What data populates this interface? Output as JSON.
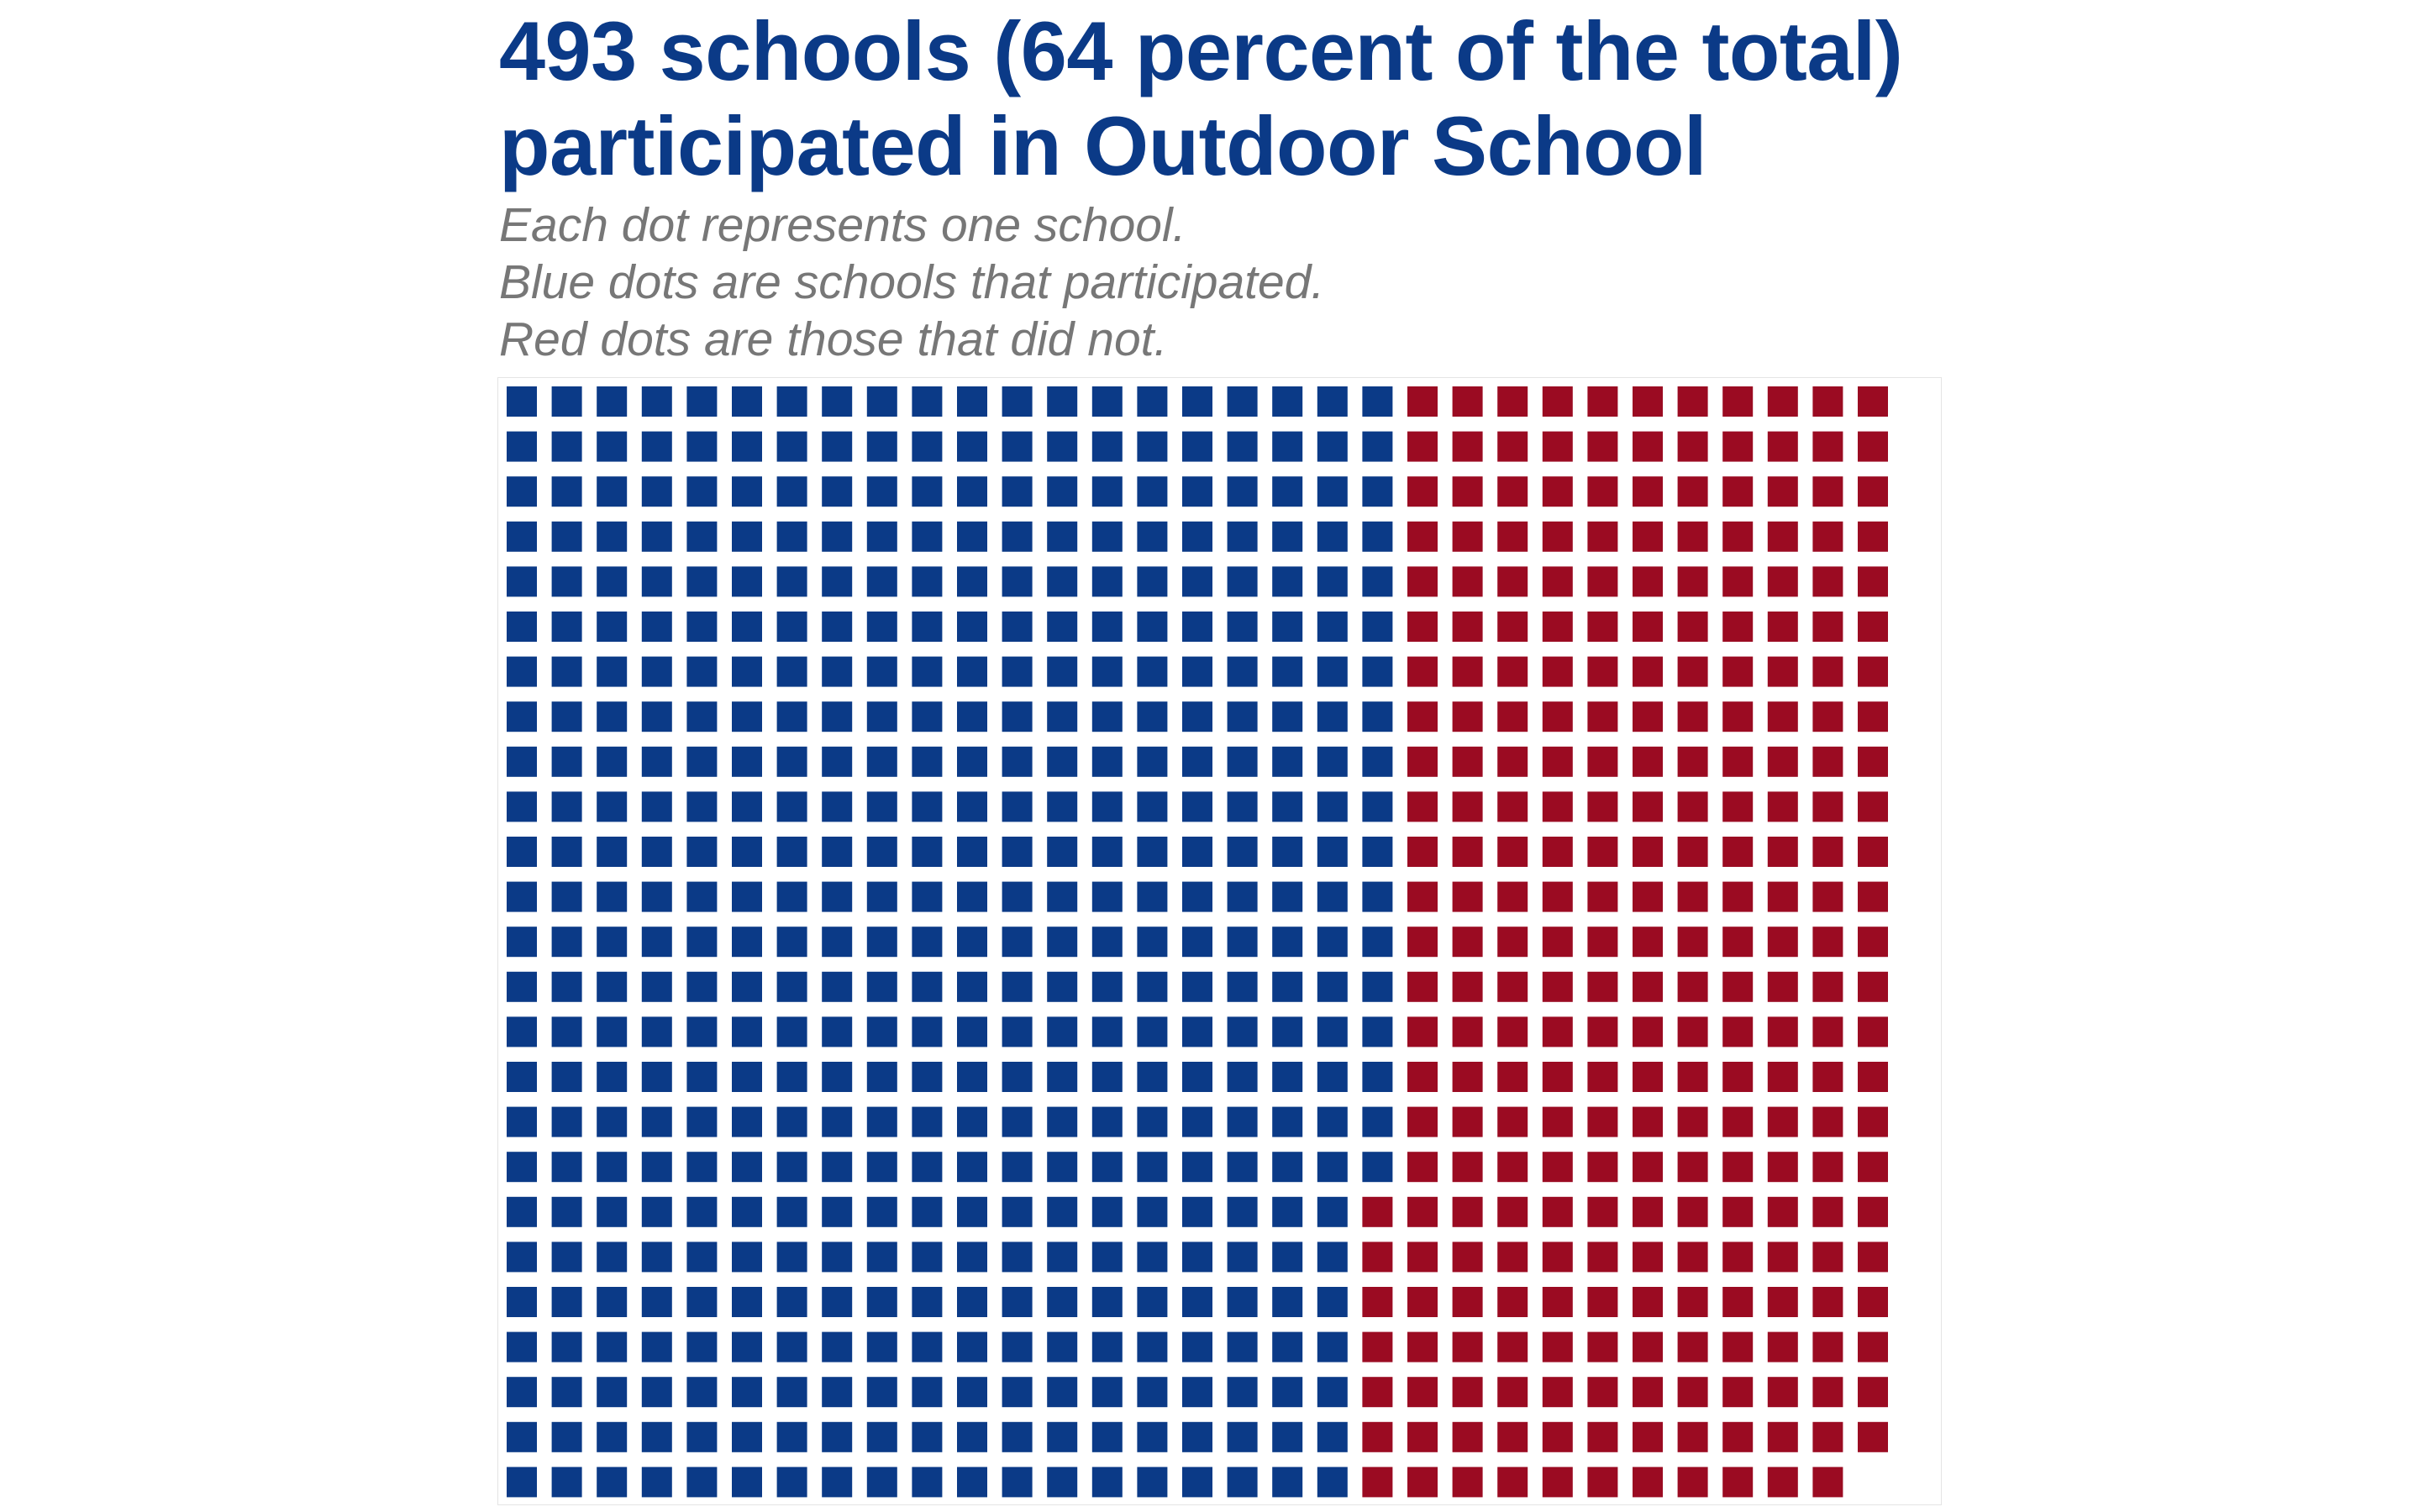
{
  "chart_data": {
    "type": "waffle",
    "title_lines": [
      "493 schools (64 percent of the total)",
      "participated in Outdoor School"
    ],
    "subtitle_lines": [
      "Each dot represents one school.",
      "Blue dots are schools that participated.",
      "Red dots are those that did not."
    ],
    "unit": "school",
    "series": [
      {
        "name": "participated",
        "value": 493,
        "color": "#0b3a87"
      },
      {
        "name": "did not participate",
        "value": 281,
        "color": "#9b0b22"
      }
    ],
    "total": 774,
    "percent_participated": 64,
    "grid": {
      "rows": 25,
      "fill_order": "column-major, top-to-bottom"
    }
  },
  "colors": {
    "title": "#0b3a87",
    "subtitle": "#777777",
    "participated": "#0b3a87",
    "did_not_participate": "#9b0b22"
  }
}
